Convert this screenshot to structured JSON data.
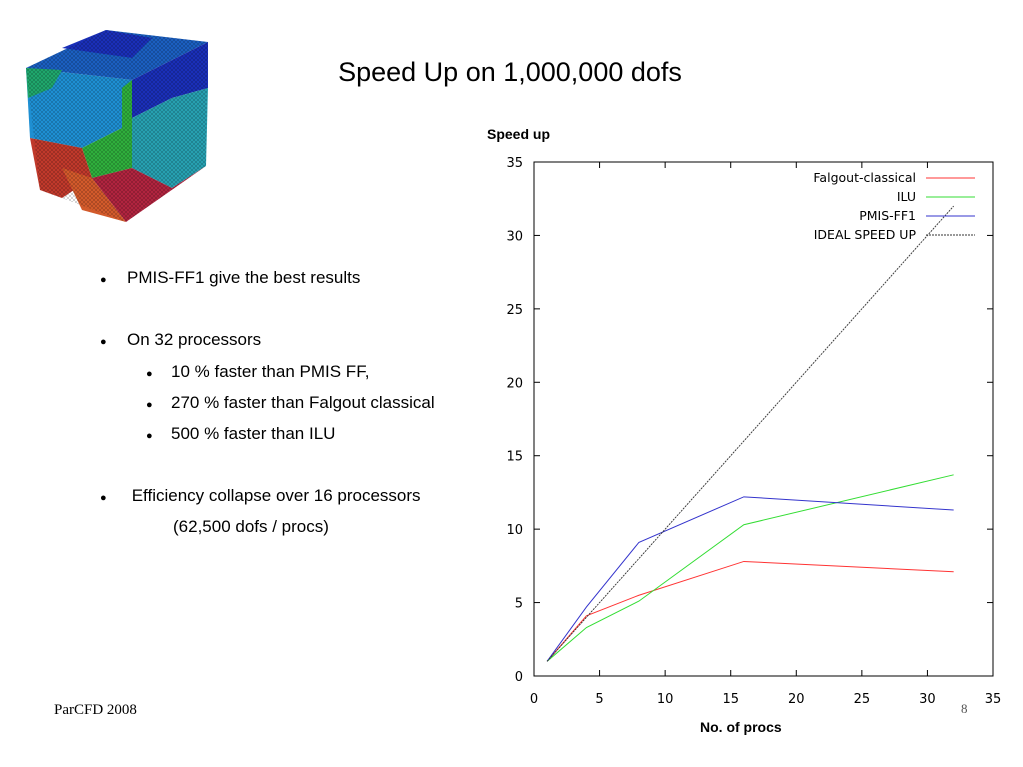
{
  "slide": {
    "title": "Speed Up on 1,000,000 dofs",
    "footer_left": "ParCFD 2008",
    "page_number": "8"
  },
  "bullets": [
    {
      "text": "PMIS-FF1  give the best results",
      "level": 1
    },
    {
      "text": "On 32 processors",
      "level": 1
    },
    {
      "text": "10 % faster than PMIS FF,",
      "level": 2
    },
    {
      "text": "270 % faster than Falgout classical",
      "level": 2
    },
    {
      "text": "500 % faster than ILU",
      "level": 2
    },
    {
      "text": " Efficiency collapse over 16 processors",
      "level": 1
    },
    {
      "text": "(62,500 dofs / procs)",
      "level": 3
    }
  ],
  "cube_colors": [
    "#1a2fb8",
    "#1b5fc0",
    "#1e8fd2",
    "#1fa66c",
    "#2fae3c",
    "#c0392b",
    "#b0243f",
    "#d25a2b",
    "#27a0b0"
  ],
  "chart_data": {
    "type": "line",
    "ylabel": "Speed up",
    "xlabel": "No. of procs",
    "xlim": [
      0,
      35
    ],
    "ylim": [
      0,
      35
    ],
    "xticks": [
      0,
      5,
      10,
      15,
      20,
      25,
      30,
      35
    ],
    "yticks": [
      0,
      5,
      10,
      15,
      20,
      25,
      30,
      35
    ],
    "grid": false,
    "legend_position": "top-right",
    "series": [
      {
        "name": "Falgout-classical",
        "color": "#ff3333",
        "dashed": false,
        "x": [
          1,
          4,
          8,
          16,
          32
        ],
        "y": [
          1,
          4.1,
          5.5,
          7.8,
          7.1
        ]
      },
      {
        "name": "ILU",
        "color": "#33dd33",
        "dashed": false,
        "x": [
          1,
          4,
          8,
          16,
          32
        ],
        "y": [
          1,
          3.3,
          5.1,
          10.3,
          13.7
        ]
      },
      {
        "name": "PMIS-FF1",
        "color": "#3333cc",
        "dashed": false,
        "x": [
          1,
          4,
          8,
          16,
          32
        ],
        "y": [
          1,
          4.7,
          9.1,
          12.2,
          11.3
        ]
      },
      {
        "name": "IDEAL SPEED UP",
        "color": "#333333",
        "dashed": true,
        "x": [
          1,
          4,
          8,
          16,
          32
        ],
        "y": [
          1,
          4,
          8,
          16,
          32
        ]
      }
    ]
  }
}
